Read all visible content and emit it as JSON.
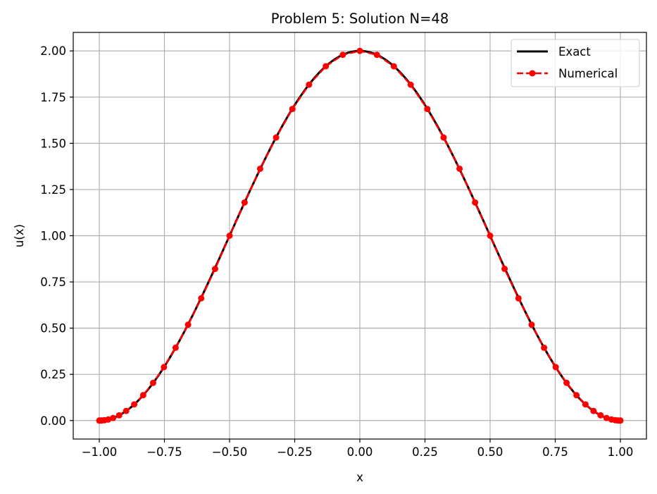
{
  "chart_data": {
    "type": "line",
    "title": "Problem 5: Solution N=48",
    "xlabel": "x",
    "ylabel": "u(x)",
    "xlim": [
      -1.1,
      1.1
    ],
    "ylim": [
      -0.1,
      2.1
    ],
    "x_ticks": [
      -1.0,
      -0.75,
      -0.5,
      -0.25,
      0.0,
      0.25,
      0.5,
      0.75,
      1.0
    ],
    "x_tick_labels": [
      "−1.00",
      "−0.75",
      "−0.50",
      "−0.25",
      "0.00",
      "0.25",
      "0.50",
      "0.75",
      "1.00"
    ],
    "y_ticks": [
      0.0,
      0.25,
      0.5,
      0.75,
      1.0,
      1.25,
      1.5,
      1.75,
      2.0
    ],
    "y_tick_labels": [
      "0.00",
      "0.25",
      "0.50",
      "0.75",
      "1.00",
      "1.25",
      "1.50",
      "1.75",
      "2.00"
    ],
    "grid": true,
    "legend_position": "top-right",
    "series": [
      {
        "name": "Exact",
        "style": "solid line",
        "color": "#000000",
        "function": "1 + cos(pi*x)",
        "x_range": [
          -1.0,
          1.0
        ]
      },
      {
        "name": "Numerical",
        "style": "dashed line with circle markers",
        "color": "#ff0000",
        "x": [
          -1.0,
          -0.9979,
          -0.9914,
          -0.9808,
          -0.9659,
          -0.9469,
          -0.9239,
          -0.8969,
          -0.866,
          -0.8315,
          -0.7934,
          -0.7518,
          -0.7071,
          -0.6593,
          -0.6088,
          -0.5556,
          -0.5,
          -0.4423,
          -0.3827,
          -0.3214,
          -0.2588,
          -0.1951,
          -0.1305,
          -0.0654,
          0.0,
          0.0654,
          0.1305,
          0.1951,
          0.2588,
          0.3214,
          0.3827,
          0.4423,
          0.5,
          0.5556,
          0.6088,
          0.6593,
          0.7071,
          0.7518,
          0.7934,
          0.8315,
          0.866,
          0.8969,
          0.9239,
          0.9469,
          0.9659,
          0.9808,
          0.9914,
          0.9979,
          1.0
        ],
        "y": [
          0.0,
          0.0,
          0.0004,
          0.0019,
          0.0057,
          0.0138,
          0.0284,
          0.052,
          0.0874,
          0.1373,
          0.204,
          0.2893,
          0.3941,
          0.5186,
          0.6615,
          0.8206,
          1.0,
          1.1798,
          1.3624,
          1.5314,
          1.686,
          1.817,
          1.9168,
          1.9789,
          2.0,
          1.9789,
          1.9168,
          1.817,
          1.686,
          1.5314,
          1.3624,
          1.1798,
          1.0,
          0.8206,
          0.6615,
          0.5186,
          0.3941,
          0.2893,
          0.204,
          0.1373,
          0.0874,
          0.052,
          0.0284,
          0.0138,
          0.0057,
          0.0019,
          0.0004,
          0.0,
          0.0
        ]
      }
    ]
  }
}
